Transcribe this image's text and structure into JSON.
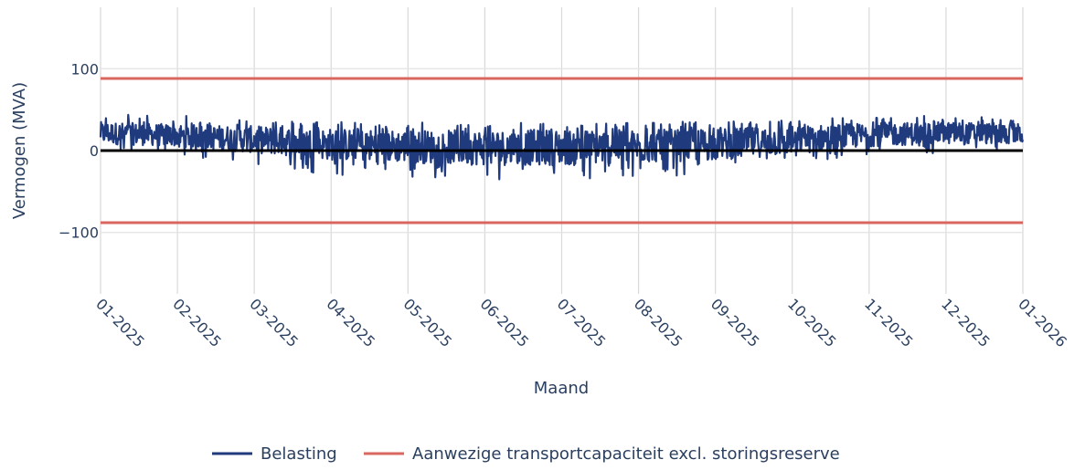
{
  "chart_data": {
    "type": "line",
    "title": "",
    "xlabel": "Maand",
    "ylabel": "Vermogen (MVA)",
    "ylim": [
      -175,
      175
    ],
    "y_ticks": [
      100,
      0,
      -100
    ],
    "y_tick_labels": [
      "100",
      "0",
      "−100"
    ],
    "x_ticks": [
      "01-2025",
      "02-2025",
      "03-2025",
      "04-2025",
      "05-2025",
      "06-2025",
      "07-2025",
      "08-2025",
      "09-2025",
      "10-2025",
      "11-2025",
      "12-2025",
      "01-2026"
    ],
    "x_range": [
      "2025-01-01",
      "2026-01-01"
    ],
    "grid": true,
    "legend_position": "bottom-center",
    "series": [
      {
        "name": "Belasting",
        "color": "#1f3a7d",
        "style": "band",
        "x": [
          "01-2025",
          "02-2025",
          "03-2025",
          "04-2025",
          "05-2025",
          "06-2025",
          "07-2025",
          "08-2025",
          "09-2025",
          "10-2025",
          "11-2025",
          "12-2025",
          "01-2026"
        ],
        "max": [
          45,
          43,
          38,
          36,
          35,
          35,
          35,
          35,
          36,
          38,
          42,
          43,
          40
        ],
        "min": [
          -3,
          -5,
          -22,
          -30,
          -33,
          -35,
          -37,
          -33,
          -28,
          -22,
          -5,
          -3,
          -2
        ],
        "typical_high": [
          35,
          32,
          30,
          27,
          25,
          25,
          26,
          25,
          27,
          30,
          34,
          35,
          33
        ],
        "typical_low": [
          8,
          5,
          -3,
          -12,
          -15,
          -18,
          -18,
          -15,
          -12,
          -5,
          5,
          8,
          8
        ]
      },
      {
        "name": "Aanwezige transportcapaciteit excl. storingsreserve",
        "color": "#d9675f",
        "style": "hline",
        "values": [
          88,
          -88
        ]
      }
    ],
    "zero_line_color": "#000000"
  }
}
